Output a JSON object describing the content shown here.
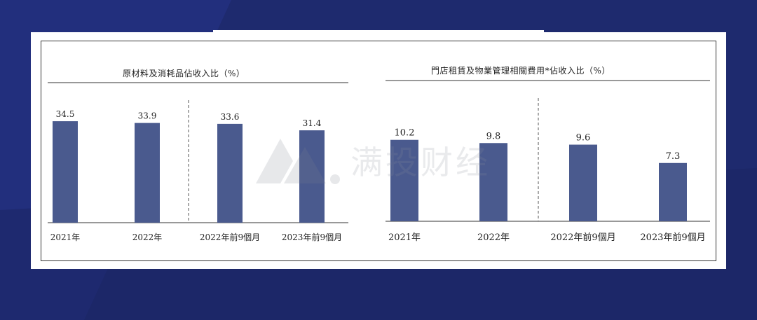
{
  "chart_data": [
    {
      "type": "bar",
      "title": "原材料及消耗品佔收入比（%）",
      "categories": [
        "2021年",
        "2022年",
        "2022年前9個月",
        "2023年前9個月"
      ],
      "values": [
        34.5,
        33.9,
        33.6,
        31.4
      ],
      "ylim": [
        0,
        40
      ],
      "divider_after_index": 1,
      "bar_color": "#4a5a8e"
    },
    {
      "type": "bar",
      "title": "門店租賃及物業管理相關費用*佔收入比（%）",
      "categories": [
        "2021年",
        "2022年",
        "2022年前9個月",
        "2023年前9個月"
      ],
      "values": [
        10.2,
        9.8,
        9.6,
        7.3
      ],
      "ylim": [
        0,
        14
      ],
      "divider_after_index": 1,
      "bar_color": "#4a5a8e"
    }
  ],
  "watermark": {
    "text": "满投财经",
    "icon": "mountain-logo-icon"
  },
  "colors": {
    "background": "#1e2a6e",
    "panel": "#ffffff",
    "bar": "#4a5a8e"
  }
}
